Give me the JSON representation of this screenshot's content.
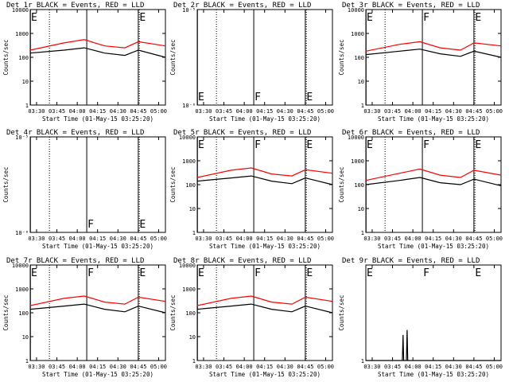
{
  "colors": {
    "events": "#000000",
    "lld": "#ff0000",
    "background": "#ffffff"
  },
  "x_tick_labels": [
    "03:30",
    "03:45",
    "04:00",
    "04:15",
    "04:30",
    "04:45",
    "05:00"
  ],
  "x_axis_label": "Start Time (01-May-15 03:25:20)",
  "y_axis_label": "Counts/sec",
  "chart_data": [
    {
      "type": "line",
      "title": "Det 1r BLACK = Events, RED = LLD",
      "xlim": [
        "03:25:20",
        "05:05:00"
      ],
      "y_scale": "log",
      "ylim": [
        1,
        10000
      ],
      "y_tick_labels": [
        "1",
        "10",
        "100",
        "1000",
        "10000"
      ],
      "vlines_solid": [
        "03:25:30",
        "04:07:00",
        "04:45:00"
      ],
      "vlines_dotted": [
        "03:39:30",
        "04:45:45"
      ],
      "markers": [
        {
          "label": "E",
          "time": "03:25:20"
        },
        {
          "label": "E",
          "time": "04:45:15"
        }
      ],
      "lld": [
        [
          0,
          200
        ],
        [
          25,
          400
        ],
        [
          40,
          550
        ],
        [
          55,
          300
        ],
        [
          70,
          250
        ],
        [
          80,
          450
        ],
        [
          100,
          300
        ]
      ],
      "events": [
        [
          0,
          150
        ],
        [
          25,
          200
        ],
        [
          40,
          250
        ],
        [
          55,
          150
        ],
        [
          70,
          120
        ],
        [
          80,
          200
        ],
        [
          100,
          100
        ]
      ]
    },
    {
      "type": "line",
      "title": "Det 2r BLACK = Events, RED = LLD",
      "xlim": [
        "03:25:20",
        "05:05:00"
      ],
      "y_scale": "log",
      "ylim": [
        1e-06,
        1e-05
      ],
      "y_tick_labels": [
        "10⁻⁶",
        "10⁻⁵"
      ],
      "vlines_solid": [
        "03:25:30",
        "04:07:00",
        "04:45:00"
      ],
      "vlines_dotted": [
        "03:39:30",
        "04:45:45"
      ],
      "markers": [
        {
          "label": "E",
          "time": "03:25:20"
        },
        {
          "label": "F",
          "time": "04:07:00"
        },
        {
          "label": "E",
          "time": "04:45:15"
        }
      ],
      "lld": [],
      "events": []
    },
    {
      "type": "line",
      "title": "Det 3r BLACK = Events, RED = LLD",
      "xlim": [
        "03:25:20",
        "05:05:00"
      ],
      "y_scale": "log",
      "ylim": [
        1,
        10000
      ],
      "y_tick_labels": [
        "1",
        "10",
        "100",
        "1000",
        "10000"
      ],
      "vlines_solid": [
        "03:25:30",
        "04:07:00",
        "04:45:00"
      ],
      "vlines_dotted": [
        "03:39:30",
        "04:45:45"
      ],
      "markers": [
        {
          "label": "E",
          "time": "03:25:20"
        },
        {
          "label": "F",
          "time": "04:07:00"
        },
        {
          "label": "E",
          "time": "04:45:15"
        }
      ],
      "lld": [
        [
          0,
          180
        ],
        [
          25,
          350
        ],
        [
          40,
          450
        ],
        [
          55,
          250
        ],
        [
          70,
          200
        ],
        [
          80,
          400
        ],
        [
          100,
          300
        ]
      ],
      "events": [
        [
          0,
          130
        ],
        [
          25,
          180
        ],
        [
          40,
          220
        ],
        [
          55,
          140
        ],
        [
          70,
          110
        ],
        [
          80,
          180
        ],
        [
          100,
          100
        ]
      ]
    },
    {
      "type": "line",
      "title": "Det 4r BLACK = Events, RED = LLD",
      "xlim": [
        "03:25:20",
        "05:05:00"
      ],
      "y_scale": "log",
      "ylim": [
        1e-06,
        1e-05
      ],
      "y_tick_labels": [
        "10⁻⁶",
        "10⁻⁵"
      ],
      "vlines_solid": [
        "03:25:30",
        "04:07:00",
        "04:45:00"
      ],
      "vlines_dotted": [
        "03:39:30",
        "04:45:45"
      ],
      "markers": [
        {
          "label": "F",
          "time": "04:07:00"
        },
        {
          "label": "E",
          "time": "04:45:15"
        }
      ],
      "lld": [],
      "events": []
    },
    {
      "type": "line",
      "title": "Det 5r BLACK = Events, RED = LLD",
      "xlim": [
        "03:25:20",
        "05:05:00"
      ],
      "y_scale": "log",
      "ylim": [
        1,
        10000
      ],
      "y_tick_labels": [
        "1",
        "10",
        "100",
        "1000",
        "10000"
      ],
      "vlines_solid": [
        "03:25:30",
        "04:07:00",
        "04:45:00"
      ],
      "vlines_dotted": [
        "03:39:30",
        "04:45:45"
      ],
      "markers": [
        {
          "label": "E",
          "time": "03:25:20"
        },
        {
          "label": "F",
          "time": "04:07:00"
        },
        {
          "label": "E",
          "time": "04:45:15"
        }
      ],
      "lld": [
        [
          0,
          200
        ],
        [
          25,
          400
        ],
        [
          40,
          500
        ],
        [
          55,
          280
        ],
        [
          70,
          230
        ],
        [
          80,
          420
        ],
        [
          100,
          300
        ]
      ],
      "events": [
        [
          0,
          140
        ],
        [
          25,
          190
        ],
        [
          40,
          230
        ],
        [
          55,
          140
        ],
        [
          70,
          110
        ],
        [
          80,
          190
        ],
        [
          100,
          100
        ]
      ]
    },
    {
      "type": "line",
      "title": "Det 6r BLACK = Events, RED = LLD",
      "xlim": [
        "03:25:20",
        "05:05:00"
      ],
      "y_scale": "log",
      "ylim": [
        1,
        10000
      ],
      "y_tick_labels": [
        "1",
        "10",
        "100",
        "1000",
        "10000"
      ],
      "vlines_solid": [
        "03:25:30",
        "04:07:00",
        "04:45:00"
      ],
      "vlines_dotted": [
        "03:39:30",
        "04:45:45"
      ],
      "markers": [
        {
          "label": "E",
          "time": "03:25:20"
        },
        {
          "label": "F",
          "time": "04:07:00"
        },
        {
          "label": "E",
          "time": "04:45:15"
        }
      ],
      "lld": [
        [
          0,
          150
        ],
        [
          25,
          300
        ],
        [
          40,
          450
        ],
        [
          55,
          250
        ],
        [
          70,
          200
        ],
        [
          80,
          400
        ],
        [
          100,
          250
        ]
      ],
      "events": [
        [
          0,
          100
        ],
        [
          25,
          150
        ],
        [
          40,
          200
        ],
        [
          55,
          120
        ],
        [
          70,
          100
        ],
        [
          80,
          170
        ],
        [
          100,
          90
        ]
      ]
    },
    {
      "type": "line",
      "title": "Det 7r BLACK = Events, RED = LLD",
      "xlim": [
        "03:25:20",
        "05:05:00"
      ],
      "y_scale": "log",
      "ylim": [
        1,
        10000
      ],
      "y_tick_labels": [
        "1",
        "10",
        "100",
        "1000",
        "10000"
      ],
      "vlines_solid": [
        "03:25:30",
        "04:07:00",
        "04:45:00"
      ],
      "vlines_dotted": [
        "03:39:30",
        "04:45:45"
      ],
      "markers": [
        {
          "label": "E",
          "time": "03:25:20"
        },
        {
          "label": "F",
          "time": "04:07:00"
        },
        {
          "label": "E",
          "time": "04:45:15"
        }
      ],
      "lld": [
        [
          0,
          200
        ],
        [
          25,
          400
        ],
        [
          40,
          500
        ],
        [
          55,
          280
        ],
        [
          70,
          230
        ],
        [
          80,
          450
        ],
        [
          100,
          300
        ]
      ],
      "events": [
        [
          0,
          140
        ],
        [
          25,
          190
        ],
        [
          40,
          230
        ],
        [
          55,
          140
        ],
        [
          70,
          110
        ],
        [
          80,
          190
        ],
        [
          100,
          100
        ]
      ]
    },
    {
      "type": "line",
      "title": "Det 8r BLACK = Events, RED = LLD",
      "xlim": [
        "03:25:20",
        "05:05:00"
      ],
      "y_scale": "log",
      "ylim": [
        1,
        10000
      ],
      "y_tick_labels": [
        "1",
        "10",
        "100",
        "1000",
        "10000"
      ],
      "vlines_solid": [
        "03:25:30",
        "04:07:00",
        "04:45:00"
      ],
      "vlines_dotted": [
        "03:39:30",
        "04:45:45"
      ],
      "markers": [
        {
          "label": "E",
          "time": "03:25:20"
        },
        {
          "label": "F",
          "time": "04:07:00"
        },
        {
          "label": "E",
          "time": "04:45:15"
        }
      ],
      "lld": [
        [
          0,
          200
        ],
        [
          25,
          400
        ],
        [
          40,
          500
        ],
        [
          55,
          280
        ],
        [
          70,
          230
        ],
        [
          80,
          450
        ],
        [
          100,
          300
        ]
      ],
      "events": [
        [
          0,
          140
        ],
        [
          25,
          190
        ],
        [
          40,
          230
        ],
        [
          55,
          140
        ],
        [
          70,
          110
        ],
        [
          80,
          190
        ],
        [
          100,
          100
        ]
      ]
    },
    {
      "type": "line",
      "title": "Det 9r BLACK = Events, RED = LLD",
      "xlim": [
        "03:25:20",
        "05:05:00"
      ],
      "y_scale": "log",
      "ylim": [
        1,
        1.2
      ],
      "y_tick_labels": [
        "1"
      ],
      "vlines_solid": [],
      "vlines_dotted": [],
      "markers": [
        {
          "label": "E",
          "time": "03:25:20"
        },
        {
          "label": "F",
          "time": "04:07:00"
        },
        {
          "label": "E",
          "time": "04:45:15"
        }
      ],
      "lld": [],
      "events": [
        [
          0,
          1
        ],
        [
          27,
          1
        ],
        [
          27.5,
          1.05
        ],
        [
          28,
          1
        ],
        [
          30,
          1
        ],
        [
          30.5,
          1.06
        ],
        [
          31,
          1
        ],
        [
          100,
          1
        ]
      ]
    }
  ]
}
